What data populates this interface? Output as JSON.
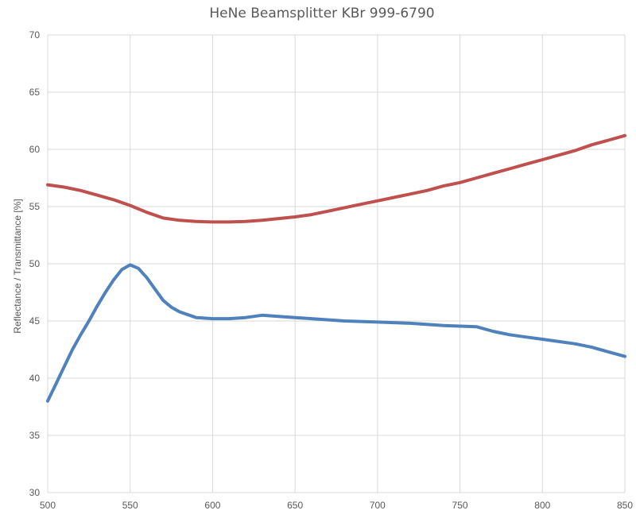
{
  "chart_data": {
    "type": "line",
    "title": "HeNe Beamsplitter KBr 999-6790",
    "xlabel": "",
    "ylabel": "Reflectance / Transmittance [%]",
    "xlim": [
      500,
      850
    ],
    "ylim": [
      30,
      70
    ],
    "x_ticks": [
      500,
      550,
      600,
      650,
      700,
      750,
      800,
      850
    ],
    "y_ticks": [
      30,
      35,
      40,
      45,
      50,
      55,
      60,
      65,
      70
    ],
    "grid": true,
    "legend": "none",
    "series": [
      {
        "color": "#c0504d",
        "points": [
          [
            500,
            56.9
          ],
          [
            510,
            56.7
          ],
          [
            520,
            56.4
          ],
          [
            530,
            56.0
          ],
          [
            540,
            55.6
          ],
          [
            550,
            55.1
          ],
          [
            560,
            54.5
          ],
          [
            570,
            54.0
          ],
          [
            580,
            53.8
          ],
          [
            590,
            53.7
          ],
          [
            600,
            53.65
          ],
          [
            610,
            53.65
          ],
          [
            620,
            53.7
          ],
          [
            630,
            53.8
          ],
          [
            640,
            53.95
          ],
          [
            650,
            54.1
          ],
          [
            660,
            54.3
          ],
          [
            670,
            54.6
          ],
          [
            680,
            54.9
          ],
          [
            690,
            55.2
          ],
          [
            700,
            55.5
          ],
          [
            710,
            55.8
          ],
          [
            720,
            56.1
          ],
          [
            730,
            56.4
          ],
          [
            740,
            56.8
          ],
          [
            750,
            57.1
          ],
          [
            760,
            57.5
          ],
          [
            770,
            57.9
          ],
          [
            780,
            58.3
          ],
          [
            790,
            58.7
          ],
          [
            800,
            59.1
          ],
          [
            810,
            59.5
          ],
          [
            820,
            59.9
          ],
          [
            830,
            60.4
          ],
          [
            840,
            60.8
          ],
          [
            850,
            61.2
          ]
        ]
      },
      {
        "color": "#4f81bd",
        "points": [
          [
            500,
            38.0
          ],
          [
            505,
            39.5
          ],
          [
            510,
            41.0
          ],
          [
            515,
            42.5
          ],
          [
            520,
            43.8
          ],
          [
            525,
            45.0
          ],
          [
            530,
            46.3
          ],
          [
            535,
            47.5
          ],
          [
            540,
            48.6
          ],
          [
            545,
            49.5
          ],
          [
            550,
            49.9
          ],
          [
            555,
            49.6
          ],
          [
            560,
            48.8
          ],
          [
            565,
            47.8
          ],
          [
            570,
            46.8
          ],
          [
            575,
            46.2
          ],
          [
            580,
            45.8
          ],
          [
            590,
            45.3
          ],
          [
            600,
            45.2
          ],
          [
            610,
            45.2
          ],
          [
            620,
            45.3
          ],
          [
            630,
            45.5
          ],
          [
            640,
            45.4
          ],
          [
            650,
            45.3
          ],
          [
            660,
            45.2
          ],
          [
            680,
            45.0
          ],
          [
            700,
            44.9
          ],
          [
            720,
            44.8
          ],
          [
            740,
            44.6
          ],
          [
            750,
            44.55
          ],
          [
            760,
            44.5
          ],
          [
            770,
            44.1
          ],
          [
            780,
            43.8
          ],
          [
            790,
            43.6
          ],
          [
            800,
            43.4
          ],
          [
            810,
            43.2
          ],
          [
            820,
            43.0
          ],
          [
            830,
            42.7
          ],
          [
            840,
            42.3
          ],
          [
            850,
            41.9
          ]
        ]
      }
    ]
  }
}
